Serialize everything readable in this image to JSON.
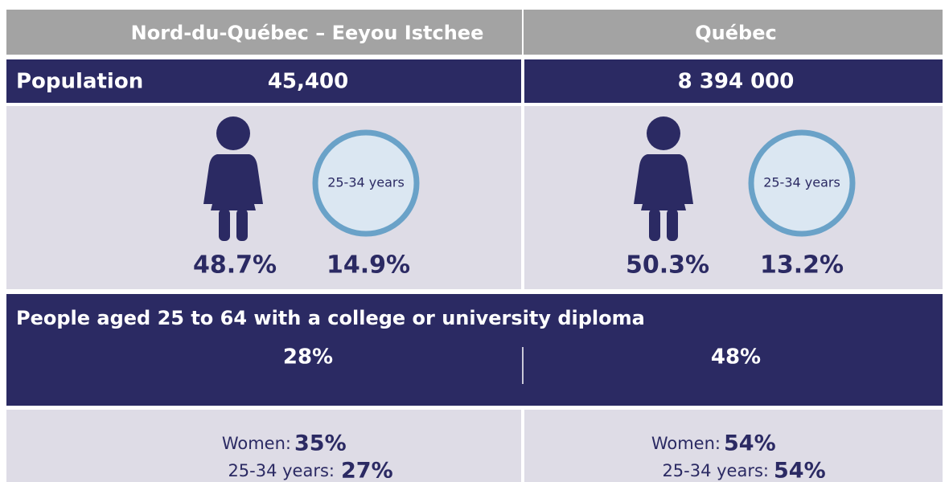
{
  "header": {
    "region": "Nord-du-Québec – Eeyou Istchee",
    "province": "Québec"
  },
  "population": {
    "label": "Population",
    "region": "45,400",
    "province": "8 394 000"
  },
  "demographics": {
    "region": {
      "women": "48.7%",
      "age_label": "25-34 years",
      "age_share": "14.9%"
    },
    "province": {
      "women": "50.3%",
      "age_label": "25-34 years",
      "age_share": "13.2%"
    }
  },
  "diploma": {
    "label": "People aged 25 to 64 with a college or university diploma",
    "region": {
      "total": "28%",
      "women_label": "Women:",
      "women": "35%",
      "age_label": "25-34 years:",
      "age": "27%"
    },
    "province": {
      "total": "48%",
      "women_label": "Women:",
      "women": "54%",
      "age_label": "25-34 years:",
      "age": "54%"
    }
  }
}
